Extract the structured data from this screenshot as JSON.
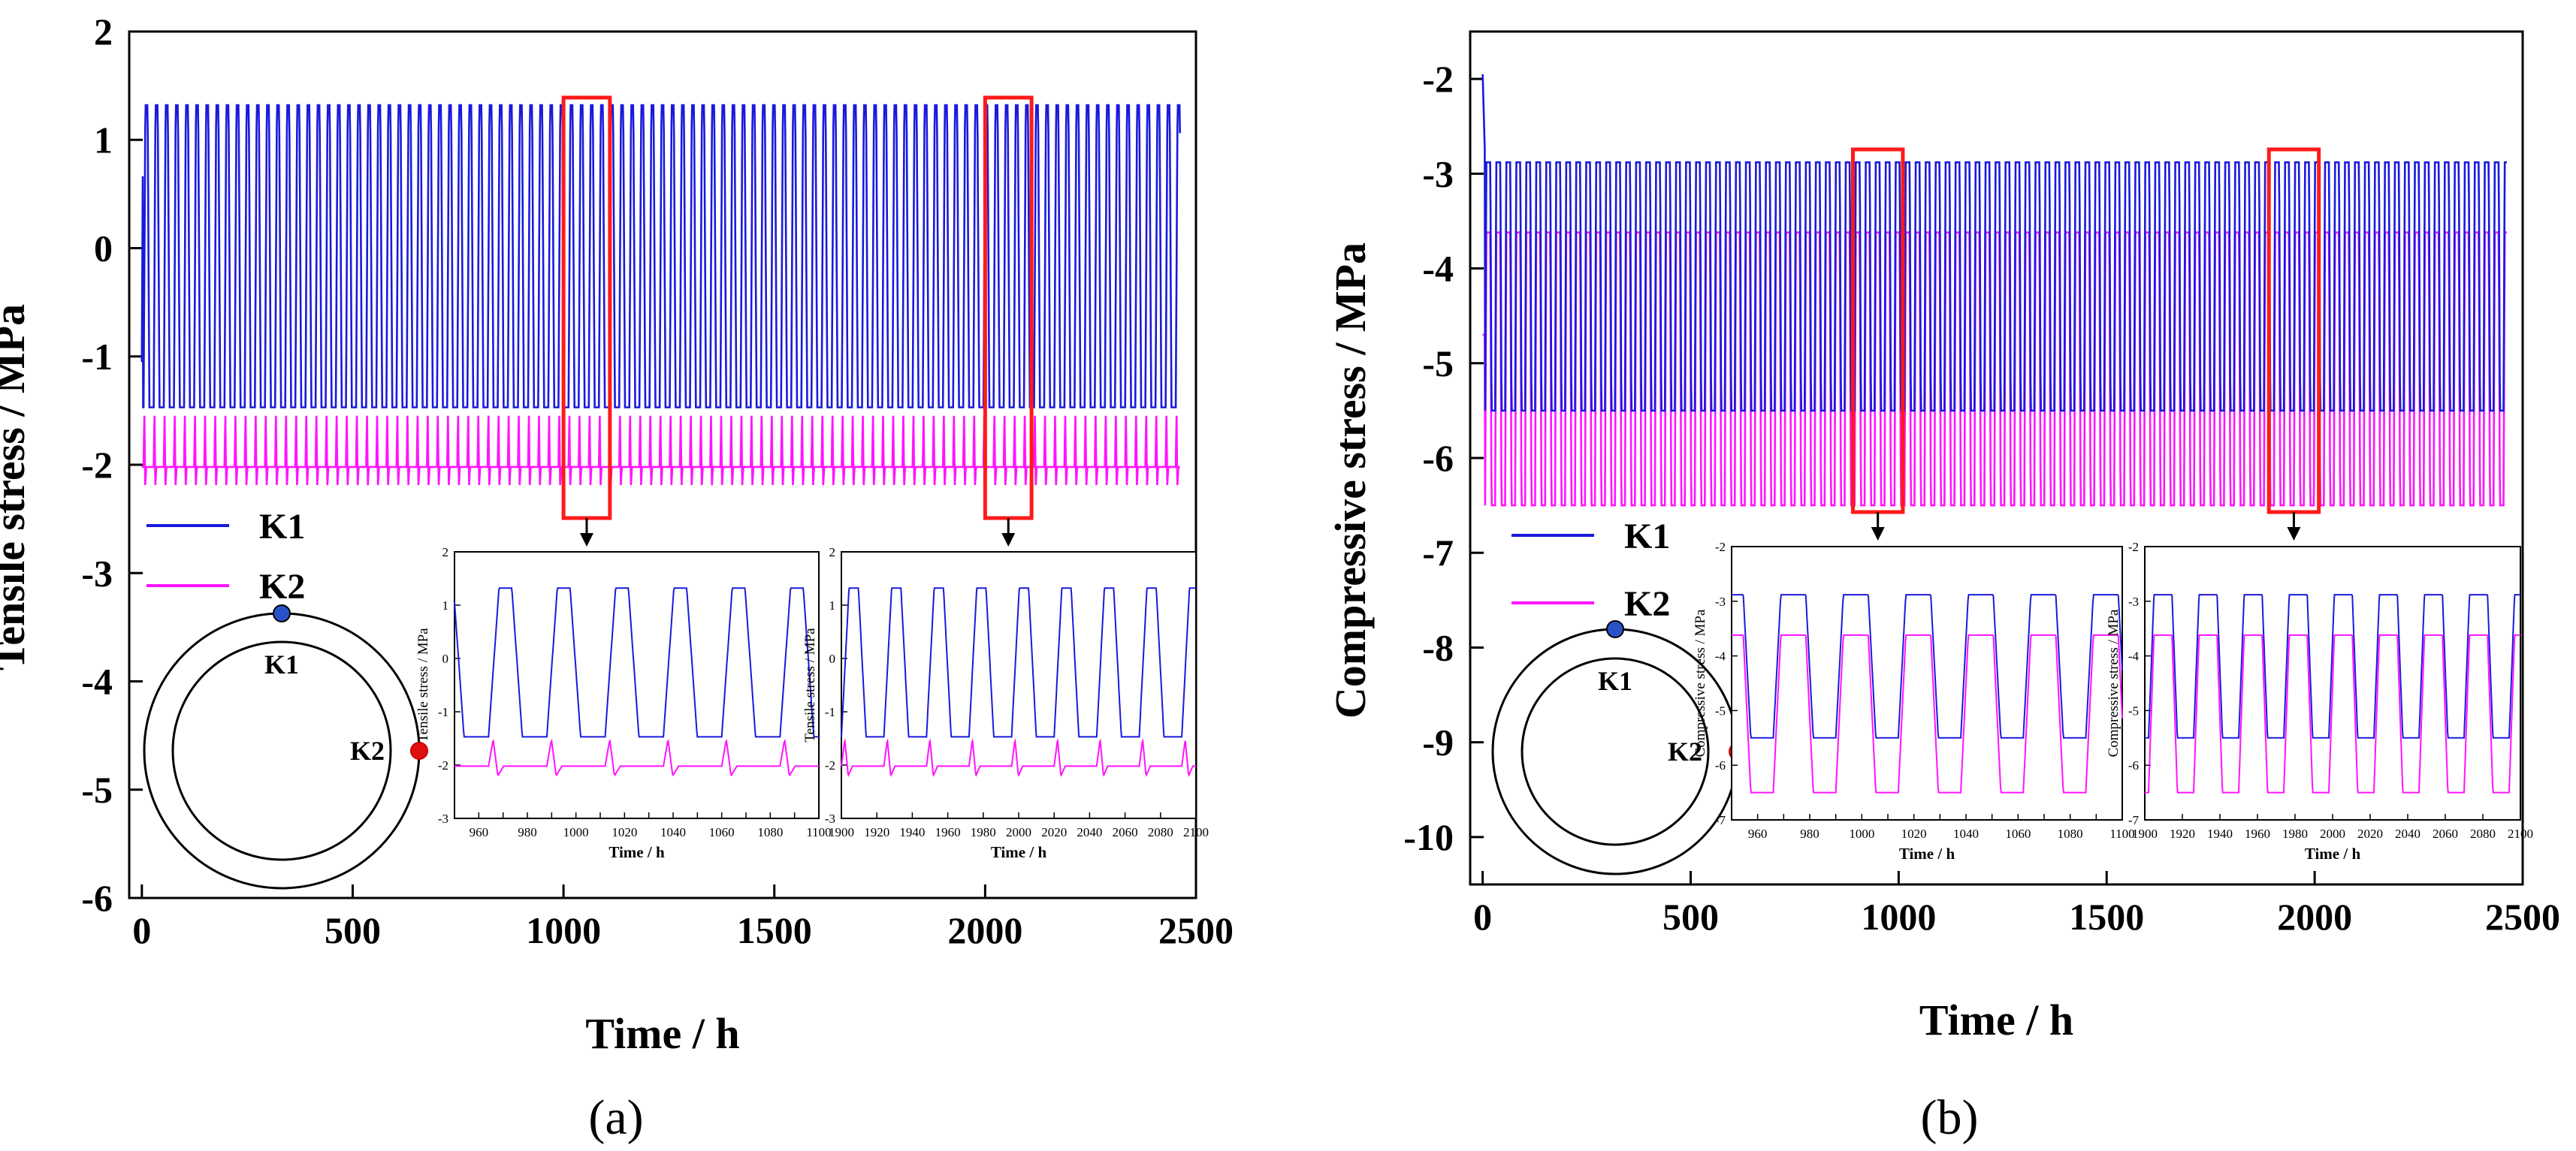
{
  "colors": {
    "k1": "#1a1adc",
    "k2": "#ff14ff",
    "box": "#ff1a1a",
    "k1_dot": "#2a52c8",
    "k2_dot": "#e01010"
  },
  "chart_data": [
    {
      "id": "a",
      "panel_label": "(a)",
      "type": "line",
      "xlabel": "Time / h",
      "ylabel": "Tensile stress / MPa",
      "xlim": [
        -30,
        2500
      ],
      "ylim": [
        -6,
        2
      ],
      "xticks": [
        0,
        500,
        1000,
        1500,
        2000,
        2500
      ],
      "yticks": [
        -6,
        -5,
        -4,
        -3,
        -2,
        -1,
        0,
        1,
        2
      ],
      "cycle_period_h": 24,
      "series": [
        {
          "name": "K1",
          "color_key": "k1",
          "max": 1.32,
          "min": -1.47,
          "initial_peak": 1.52,
          "initial_value": -1.05
        },
        {
          "name": "K2",
          "color_key": "k2",
          "max": -1.52,
          "min": -2.2,
          "plateau": -2.02
        }
      ],
      "highlight_ranges": [
        [
          1000,
          1110
        ],
        [
          2000,
          2110
        ]
      ],
      "legend": [
        "K1",
        "K2"
      ],
      "schematic": {
        "inner_label": "K1",
        "outer_label": "K2"
      },
      "insets": [
        {
          "xlim": [
            950,
            1100
          ],
          "xticks": [
            960,
            970,
            980,
            990,
            1000,
            1010,
            1020,
            1030,
            1040,
            1050,
            1060,
            1070,
            1080,
            1090,
            1100
          ],
          "xtick_labels": [
            "960",
            "980",
            "1000",
            "1020",
            "1040",
            "1060",
            "1080",
            "1100"
          ],
          "ylim": [
            -3,
            2
          ],
          "yticks": [
            -3,
            -2,
            -1,
            0,
            1,
            2
          ],
          "xlabel": "Time / h",
          "ylabel": "Tensile stress / MPa"
        },
        {
          "xlim": [
            1900,
            2100
          ],
          "xticks": [
            1900,
            1920,
            1940,
            1960,
            1980,
            2000,
            2020,
            2040,
            2060,
            2080,
            2100
          ],
          "xtick_labels": [
            "1900",
            "1920",
            "1940",
            "1960",
            "1980",
            "2000",
            "2020",
            "2040",
            "2060",
            "2080",
            "2100"
          ],
          "ylim": [
            -3,
            2
          ],
          "yticks": [
            -3,
            -2,
            -1,
            0,
            1,
            2
          ],
          "xlabel": "Time / h",
          "ylabel": "Tensile stress / MPa"
        }
      ]
    },
    {
      "id": "b",
      "panel_label": "(b)",
      "type": "line",
      "xlabel": "Time / h",
      "ylabel": "Compressive stress / MPa",
      "xlim": [
        -30,
        2500
      ],
      "ylim": [
        -10.5,
        -1.5
      ],
      "xticks": [
        0,
        500,
        1000,
        1500,
        2000,
        2500
      ],
      "yticks": [
        -10,
        -9,
        -8,
        -7,
        -6,
        -5,
        -4,
        -3,
        -2
      ],
      "cycle_period_h": 24,
      "series": [
        {
          "name": "K1",
          "color_key": "k1",
          "max": -2.88,
          "min": -5.5,
          "initial_peak": -1.95
        },
        {
          "name": "K2",
          "color_key": "k2",
          "max": -3.62,
          "min": -6.5,
          "initial_peak": -4.7
        }
      ],
      "highlight_ranges": [
        [
          890,
          1010
        ],
        [
          1890,
          2010
        ]
      ],
      "legend": [
        "K1",
        "K2"
      ],
      "schematic": {
        "inner_label": "K1",
        "outer_label": "K2"
      },
      "insets": [
        {
          "xlim": [
            950,
            1100
          ],
          "xticks": [
            960,
            970,
            980,
            990,
            1000,
            1010,
            1020,
            1030,
            1040,
            1050,
            1060,
            1070,
            1080,
            1090,
            1100
          ],
          "xtick_labels": [
            "960",
            "980",
            "1000",
            "1020",
            "1040",
            "1060",
            "1080",
            "1100"
          ],
          "ylim": [
            -7,
            -2
          ],
          "yticks": [
            -7,
            -6,
            -5,
            -4,
            -3,
            -2
          ],
          "xlabel": "Time / h",
          "ylabel": "Compressive stress / MPa"
        },
        {
          "xlim": [
            1900,
            2100
          ],
          "xticks": [
            1900,
            1920,
            1940,
            1960,
            1980,
            2000,
            2020,
            2040,
            2060,
            2080,
            2100
          ],
          "xtick_labels": [
            "1900",
            "1920",
            "1940",
            "1960",
            "1980",
            "2000",
            "2020",
            "2040",
            "2060",
            "2080",
            "2100"
          ],
          "ylim": [
            -7,
            -2
          ],
          "yticks": [
            -7,
            -6,
            -5,
            -4,
            -3,
            -2
          ],
          "xlabel": "Time / h",
          "ylabel": "Compressive stress / MPa"
        }
      ]
    }
  ]
}
